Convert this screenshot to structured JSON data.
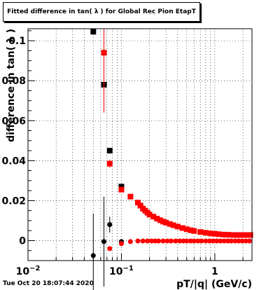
{
  "title": "Fitted difference in tan( λ ) for Global Rec Pion EtapT",
  "timestamp": "Tue Oct 20 18:07:44 2020",
  "chart_data": {
    "type": "scatter",
    "title": "Fitted difference in tan( λ ) for Global Rec Pion EtapT",
    "xlabel": "pT/|q| (GeV/c)",
    "ylabel": "difference in tan( λ )",
    "xscale": "log",
    "xlim": [
      0.01,
      2.5
    ],
    "ylim": [
      -0.01,
      0.106
    ],
    "grid": true,
    "x_ticks": [
      {
        "value": 0.01,
        "mantissa": "10",
        "exponent": "−2"
      },
      {
        "value": 0.1,
        "mantissa": "10",
        "exponent": "−1"
      },
      {
        "value": 1,
        "mantissa": "1",
        "exponent": ""
      }
    ],
    "y_ticks": [
      {
        "value": 0,
        "label": "0"
      },
      {
        "value": 0.02,
        "label": "0.02"
      },
      {
        "value": 0.04,
        "label": "0.04"
      },
      {
        "value": 0.06,
        "label": "0.06"
      },
      {
        "value": 0.08,
        "label": "0.08"
      },
      {
        "value": 0.1,
        "label": "0.1"
      }
    ],
    "series": [
      {
        "color": "#000000",
        "marker": "square",
        "points": [
          [
            0.05,
            0.1045
          ],
          [
            0.065,
            0.078
          ],
          [
            0.075,
            0.045
          ],
          [
            0.1,
            0.027
          ]
        ],
        "errors": [
          [
            0.0,
            0.0
          ],
          [
            0.002,
            0.0
          ],
          [
            0.001,
            0.001
          ],
          [
            0.001,
            0.0005
          ]
        ]
      },
      {
        "color": "#ff0000",
        "marker": "square",
        "points": [
          [
            0.065,
            0.094
          ],
          [
            0.075,
            0.0385
          ],
          [
            0.1,
            0.0255
          ],
          [
            0.125,
            0.022
          ],
          [
            0.15,
            0.019
          ],
          [
            0.16,
            0.0175
          ],
          [
            0.17,
            0.016
          ],
          [
            0.18,
            0.015
          ],
          [
            0.19,
            0.014
          ],
          [
            0.2,
            0.013
          ],
          [
            0.22,
            0.012
          ],
          [
            0.24,
            0.011
          ],
          [
            0.26,
            0.0102
          ],
          [
            0.28,
            0.0095
          ],
          [
            0.3,
            0.009
          ],
          [
            0.33,
            0.0083
          ],
          [
            0.36,
            0.0077
          ],
          [
            0.4,
            0.007
          ],
          [
            0.45,
            0.0063
          ],
          [
            0.5,
            0.0057
          ],
          [
            0.55,
            0.0052
          ],
          [
            0.6,
            0.0048
          ],
          [
            0.7,
            0.0043
          ],
          [
            0.8,
            0.0039
          ],
          [
            0.9,
            0.0036
          ],
          [
            1.0,
            0.0034
          ],
          [
            1.1,
            0.0032
          ],
          [
            1.25,
            0.003
          ],
          [
            1.4,
            0.0029
          ],
          [
            1.6,
            0.0028
          ],
          [
            1.8,
            0.0028
          ],
          [
            2.0,
            0.0028
          ],
          [
            2.2,
            0.0028
          ],
          [
            2.4,
            0.0028
          ]
        ],
        "errors": [
          [
            0.0,
            0.03
          ],
          [
            0.0,
            0.002
          ],
          [
            0.0,
            0.001
          ],
          [
            0.0,
            0.0005
          ]
        ]
      },
      {
        "color": "#000000",
        "marker": "circle",
        "points": [
          [
            0.05,
            -0.0075
          ],
          [
            0.065,
            -0.0005
          ],
          [
            0.075,
            0.008
          ],
          [
            0.1,
            -0.0005
          ]
        ],
        "errors": [
          [
            0.0,
            0.021
          ],
          [
            0.0,
            0.0225
          ],
          [
            0.0,
            0.004
          ],
          [
            0.0,
            0.001
          ]
        ]
      },
      {
        "color": "#ff0000",
        "marker": "circle",
        "points": [
          [
            0.075,
            -0.004
          ],
          [
            0.1,
            -0.0015
          ],
          [
            0.125,
            -0.0005
          ],
          [
            0.15,
            -0.0002
          ],
          [
            0.17,
            -0.0002
          ],
          [
            0.19,
            -0.0002
          ],
          [
            0.21,
            -0.0002
          ],
          [
            0.23,
            -0.0002
          ],
          [
            0.25,
            -0.0002
          ],
          [
            0.28,
            -0.0002
          ],
          [
            0.31,
            -0.0002
          ],
          [
            0.34,
            -0.0002
          ],
          [
            0.38,
            -0.0002
          ],
          [
            0.42,
            -0.0002
          ],
          [
            0.46,
            -0.0002
          ],
          [
            0.5,
            -0.0002
          ],
          [
            0.55,
            -0.0002
          ],
          [
            0.6,
            -0.0002
          ],
          [
            0.66,
            -0.0002
          ],
          [
            0.72,
            -0.0002
          ],
          [
            0.8,
            -0.0002
          ],
          [
            0.88,
            -0.0002
          ],
          [
            0.96,
            -0.0002
          ],
          [
            1.05,
            -0.0002
          ],
          [
            1.15,
            -0.0002
          ],
          [
            1.26,
            -0.0002
          ],
          [
            1.38,
            -0.0002
          ],
          [
            1.5,
            -0.0002
          ],
          [
            1.65,
            -0.0002
          ],
          [
            1.8,
            -0.0002
          ],
          [
            1.97,
            -0.0002
          ],
          [
            2.15,
            -0.0002
          ],
          [
            2.35,
            -0.0002
          ]
        ],
        "errors": [
          [
            0.0,
            0.0
          ],
          [
            0.0,
            0.0005
          ]
        ]
      }
    ]
  }
}
